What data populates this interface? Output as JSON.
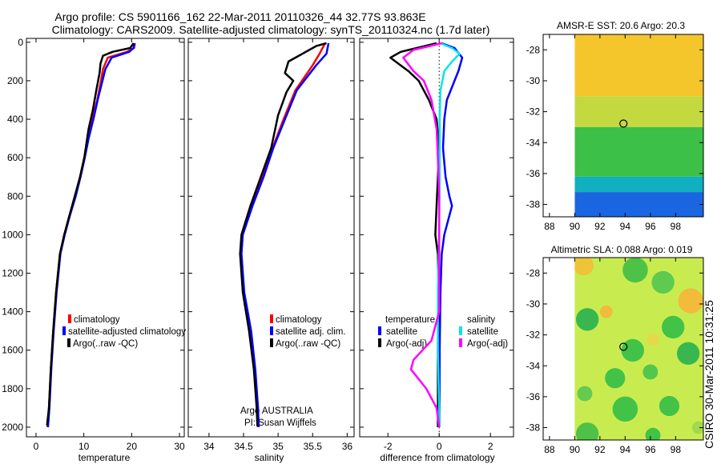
{
  "header": {
    "line1": "Argo profile: CS 5901166_162 22-Mar-2011 20110326_44 32.77S 93.863E",
    "line2": "Climatology: CARS2009. Satellite-adjusted climatology: synTS_20110324.nc (1.7d later)"
  },
  "side_stamp": "CSIRO 30-Mar-2011 10:31:25",
  "colors": {
    "climatology": "#ff0000",
    "satellite": "#0000ff",
    "argo": "#000000",
    "satellite_diff": "#00e5ee",
    "argo_adj_diff": "#ff00ff"
  },
  "chart_data": [
    {
      "type": "line",
      "panel": "temperature",
      "xlabel": "temperature",
      "ylabel": "",
      "xlim": [
        -2,
        31
      ],
      "ylim": [
        2050,
        -20
      ],
      "xticks": [
        "0",
        "10",
        "20",
        "30"
      ],
      "yticks": [
        "0",
        "200",
        "400",
        "600",
        "800",
        "1000",
        "1200",
        "1400",
        "1600",
        "1800",
        "2000"
      ],
      "legend": [
        "climatology",
        "satellite-adjusted climatology",
        "Argo(..raw -QC)"
      ],
      "series": [
        {
          "name": "climatology",
          "color": "#ff0000",
          "points": [
            [
              20.7,
              5
            ],
            [
              20.5,
              30
            ],
            [
              19,
              50
            ],
            [
              15,
              80
            ],
            [
              14,
              140
            ],
            [
              13.6,
              200
            ],
            [
              12.8,
              300
            ],
            [
              11.8,
              400
            ],
            [
              10.9,
              500
            ],
            [
              10.1,
              600
            ],
            [
              9.2,
              700
            ],
            [
              8.2,
              800
            ],
            [
              7,
              900
            ],
            [
              5.9,
              1000
            ],
            [
              5,
              1100
            ],
            [
              4.2,
              1300
            ],
            [
              3.6,
              1500
            ],
            [
              3.1,
              1700
            ],
            [
              2.7,
              1900
            ],
            [
              2.4,
              2000
            ]
          ]
        },
        {
          "name": "satellite-adjusted climatology",
          "color": "#0000ff",
          "points": [
            [
              20.6,
              5
            ],
            [
              20.4,
              30
            ],
            [
              19.5,
              50
            ],
            [
              15.8,
              80
            ],
            [
              14.5,
              140
            ],
            [
              13.9,
              200
            ],
            [
              12.9,
              300
            ],
            [
              12,
              400
            ],
            [
              11,
              500
            ],
            [
              10.2,
              600
            ],
            [
              9.3,
              700
            ],
            [
              8.3,
              800
            ],
            [
              7.1,
              900
            ],
            [
              6,
              1000
            ],
            [
              5.1,
              1100
            ],
            [
              4.3,
              1300
            ],
            [
              3.7,
              1500
            ],
            [
              3.2,
              1700
            ],
            [
              2.8,
              1900
            ],
            [
              2.5,
              2000
            ]
          ]
        },
        {
          "name": "Argo(..raw -QC)",
          "color": "#000000",
          "points": [
            [
              20.4,
              5
            ],
            [
              19.7,
              30
            ],
            [
              16,
              50
            ],
            [
              14,
              70
            ],
            [
              13.5,
              110
            ],
            [
              13.3,
              160
            ],
            [
              12.6,
              250
            ],
            [
              11.9,
              350
            ],
            [
              11,
              450
            ],
            [
              10.1,
              600
            ],
            [
              9.2,
              700
            ],
            [
              8.1,
              800
            ],
            [
              7,
              900
            ],
            [
              5.9,
              1000
            ],
            [
              5,
              1100
            ],
            [
              4.2,
              1300
            ],
            [
              3.6,
              1500
            ],
            [
              3.1,
              1700
            ],
            [
              2.7,
              1900
            ],
            [
              2.3,
              1990
            ]
          ]
        }
      ]
    },
    {
      "type": "line",
      "panel": "salinity",
      "xlabel": "salinity",
      "xlim": [
        33.7,
        36.1
      ],
      "ylim": [
        2050,
        -20
      ],
      "xticks": [
        "34",
        "34.5",
        "35",
        "35.5",
        "36"
      ],
      "legend": [
        "climatology",
        "satellite adj. clim.",
        "Argo(..raw -QC)"
      ],
      "annotation": [
        "Argo AUSTRALIA",
        "PI: Susan Wijffels"
      ],
      "series": [
        {
          "name": "climatology",
          "color": "#ff0000",
          "points": [
            [
              35.68,
              5
            ],
            [
              35.6,
              60
            ],
            [
              35.5,
              120
            ],
            [
              35.25,
              250
            ],
            [
              35.08,
              400
            ],
            [
              34.92,
              550
            ],
            [
              34.78,
              700
            ],
            [
              34.62,
              850
            ],
            [
              34.48,
              1000
            ],
            [
              34.46,
              1100
            ],
            [
              34.5,
              1300
            ],
            [
              34.6,
              1500
            ],
            [
              34.66,
              1700
            ],
            [
              34.7,
              1900
            ],
            [
              34.71,
              2000
            ]
          ]
        },
        {
          "name": "satellite adj. clim.",
          "color": "#0000ff",
          "points": [
            [
              35.73,
              5
            ],
            [
              35.7,
              60
            ],
            [
              35.55,
              120
            ],
            [
              35.27,
              250
            ],
            [
              35.1,
              400
            ],
            [
              34.93,
              550
            ],
            [
              34.79,
              700
            ],
            [
              34.63,
              850
            ],
            [
              34.49,
              1000
            ],
            [
              34.47,
              1100
            ],
            [
              34.51,
              1300
            ],
            [
              34.61,
              1500
            ],
            [
              34.67,
              1700
            ],
            [
              34.71,
              1900
            ],
            [
              34.72,
              2000
            ]
          ]
        },
        {
          "name": "Argo(..raw -QC)",
          "color": "#000000",
          "points": [
            [
              35.7,
              5
            ],
            [
              35.55,
              20
            ],
            [
              35.15,
              100
            ],
            [
              35.1,
              160
            ],
            [
              35.22,
              200
            ],
            [
              35.12,
              260
            ],
            [
              35.0,
              380
            ],
            [
              34.9,
              550
            ],
            [
              34.75,
              700
            ],
            [
              34.6,
              850
            ],
            [
              34.47,
              1000
            ],
            [
              34.45,
              1100
            ],
            [
              34.49,
              1300
            ],
            [
              34.58,
              1500
            ],
            [
              34.65,
              1700
            ],
            [
              34.69,
              1900
            ],
            [
              34.7,
              1995
            ]
          ]
        }
      ]
    },
    {
      "type": "line",
      "panel": "difference",
      "xlabel": "difference from climatology",
      "xlim": [
        -3.1,
        2.9
      ],
      "ylim": [
        2050,
        -20
      ],
      "xticks": [
        "-2",
        "0",
        "2"
      ],
      "legend": [
        "temperature",
        "satellite",
        "Argo(-adj)",
        "salinity",
        "satellite",
        "Argo(-adj)"
      ],
      "series": [
        {
          "name": "satellite",
          "color": "#0000ff",
          "points": [
            [
              0.1,
              5
            ],
            [
              0.6,
              30
            ],
            [
              0.9,
              80
            ],
            [
              0.75,
              150
            ],
            [
              0.6,
              200
            ],
            [
              0.3,
              300
            ],
            [
              0.2,
              400
            ],
            [
              0.15,
              550
            ],
            [
              0.25,
              700
            ],
            [
              0.4,
              800
            ],
            [
              0.5,
              850
            ],
            [
              0.4,
              900
            ],
            [
              0.2,
              1000
            ],
            [
              0.1,
              1100
            ],
            [
              0.05,
              1300
            ],
            [
              0.02,
              1600
            ],
            [
              0.01,
              2000
            ]
          ]
        },
        {
          "name": "Argo(-adj)",
          "color": "#000000",
          "points": [
            [
              -0.1,
              5
            ],
            [
              -1.5,
              50
            ],
            [
              -1.9,
              80
            ],
            [
              -1.2,
              150
            ],
            [
              -0.8,
              200
            ],
            [
              -0.4,
              300
            ],
            [
              -0.1,
              400
            ],
            [
              0,
              550
            ],
            [
              -0.05,
              700
            ],
            [
              -0.1,
              850
            ],
            [
              -0.15,
              1000
            ],
            [
              -0.05,
              1100
            ],
            [
              -0.02,
              1300
            ],
            [
              -0.05,
              1600
            ],
            [
              -0.05,
              2000
            ]
          ]
        },
        {
          "name": "satellite",
          "color": "#00e5ee",
          "points": [
            [
              0.05,
              5
            ],
            [
              0.5,
              30
            ],
            [
              0.8,
              60
            ],
            [
              0.5,
              100
            ],
            [
              0.2,
              150
            ],
            [
              0.05,
              250
            ],
            [
              0.02,
              400
            ],
            [
              0.02,
              700
            ],
            [
              0,
              1000
            ],
            [
              -0.05,
              1300
            ],
            [
              -0.05,
              1600
            ],
            [
              0.02,
              2000
            ]
          ]
        },
        {
          "name": "Argo(-adj)",
          "color": "#ff00ff",
          "points": [
            [
              0.1,
              5
            ],
            [
              -1.0,
              40
            ],
            [
              -1.4,
              80
            ],
            [
              -1.0,
              150
            ],
            [
              -0.6,
              200
            ],
            [
              -0.3,
              300
            ],
            [
              -0.1,
              450
            ],
            [
              -0.05,
              600
            ],
            [
              0,
              800
            ],
            [
              0,
              1000
            ],
            [
              0,
              1300
            ],
            [
              0,
              1400
            ],
            [
              -0.3,
              1550
            ],
            [
              -1.0,
              1650
            ],
            [
              -1.1,
              1700
            ],
            [
              -0.5,
              1800
            ],
            [
              -0.1,
              1900
            ],
            [
              0,
              2000
            ]
          ]
        }
      ]
    },
    {
      "type": "heatmap",
      "panel": "sst_map",
      "title": "AMSR-E SST: 20.6 Argo: 20.3",
      "xticks": [
        "88",
        "90",
        "92",
        "94",
        "96",
        "98"
      ],
      "yticks": [
        "-28",
        "-30",
        "-32",
        "-34",
        "-36",
        "-38"
      ],
      "xlim": [
        87.5,
        100.2
      ],
      "ylim": [
        -38.8,
        -27.0
      ],
      "data_extent": {
        "x": [
          90,
          100.2
        ],
        "y": [
          -38.8,
          -27.0
        ]
      },
      "marker": {
        "lon": 93.863,
        "lat": -32.77
      },
      "color_bands": [
        {
          "from_lat": -27.0,
          "to_lat": -31.0,
          "color": "#f4c62c"
        },
        {
          "from_lat": -31.0,
          "to_lat": -33.0,
          "color": "#c4d840"
        },
        {
          "from_lat": -33.0,
          "to_lat": -36.2,
          "color": "#3cc048"
        },
        {
          "from_lat": -36.2,
          "to_lat": -37.2,
          "color": "#10b0c0"
        },
        {
          "from_lat": -37.2,
          "to_lat": -38.8,
          "color": "#1a66e0"
        }
      ]
    },
    {
      "type": "heatmap",
      "panel": "sla_map",
      "title": "Altimetric SLA: 0.088 Argo: 0.019",
      "xticks": [
        "88",
        "90",
        "92",
        "94",
        "96",
        "98"
      ],
      "yticks": [
        "-28",
        "-30",
        "-32",
        "-34",
        "-36",
        "-38"
      ],
      "xlim": [
        87.5,
        100.2
      ],
      "ylim": [
        -38.8,
        -27.0
      ],
      "data_extent": {
        "x": [
          90,
          100.2
        ],
        "y": [
          -38.8,
          -27.0
        ]
      },
      "marker": {
        "lon": 93.863,
        "lat": -32.77
      },
      "background_color": "#c8ec50",
      "blobs": [
        {
          "lon": 94.8,
          "lat": -27.8,
          "r": 1.0,
          "color": "#48c048"
        },
        {
          "lon": 97.0,
          "lat": -28.6,
          "r": 0.9,
          "color": "#5ac850"
        },
        {
          "lon": 99.2,
          "lat": -29.8,
          "r": 1.0,
          "color": "#f4b83a"
        },
        {
          "lon": 90.7,
          "lat": -27.5,
          "r": 0.8,
          "color": "#f0c038"
        },
        {
          "lon": 91.0,
          "lat": -31.0,
          "r": 0.9,
          "color": "#30b450"
        },
        {
          "lon": 92.5,
          "lat": -30.5,
          "r": 0.5,
          "color": "#f4b83a"
        },
        {
          "lon": 97.8,
          "lat": -31.5,
          "r": 0.9,
          "color": "#3cc048"
        },
        {
          "lon": 96.2,
          "lat": -32.3,
          "r": 0.5,
          "color": "#e8d848"
        },
        {
          "lon": 99.0,
          "lat": -33.2,
          "r": 0.9,
          "color": "#30b450"
        },
        {
          "lon": 94.6,
          "lat": -33.0,
          "r": 0.9,
          "color": "#3cc048"
        },
        {
          "lon": 93.2,
          "lat": -34.8,
          "r": 0.8,
          "color": "#3cc048"
        },
        {
          "lon": 96.0,
          "lat": -34.4,
          "r": 0.6,
          "color": "#4ec44c"
        },
        {
          "lon": 90.8,
          "lat": -35.8,
          "r": 0.6,
          "color": "#60c850"
        },
        {
          "lon": 94.0,
          "lat": -36.8,
          "r": 1.0,
          "color": "#3cc048"
        },
        {
          "lon": 97.5,
          "lat": -36.6,
          "r": 0.8,
          "color": "#3cc048"
        },
        {
          "lon": 91.0,
          "lat": -38.4,
          "r": 0.9,
          "color": "#48c048"
        },
        {
          "lon": 96.2,
          "lat": -38.5,
          "r": 0.6,
          "color": "#3cc048"
        },
        {
          "lon": 99.8,
          "lat": -38.0,
          "r": 0.5,
          "color": "#a0d848"
        }
      ]
    }
  ]
}
